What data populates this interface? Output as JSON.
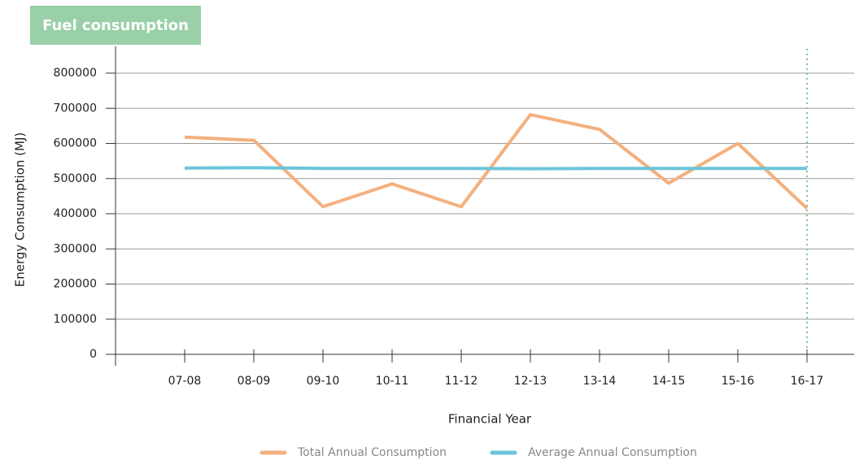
{
  "chart_data": {
    "type": "line",
    "title": "Fuel consumption",
    "x_label": "Financial Year",
    "y_label": "Energy Consumption (MJ)",
    "categories": [
      "07-08",
      "08-09",
      "09-10",
      "10-11",
      "11-12",
      "12-13",
      "13-14",
      "14-15",
      "15-16",
      "16-17"
    ],
    "series": [
      {
        "name": "Total Annual Consumption",
        "color": "#f4b07e",
        "values": [
          618000,
          609000,
          420000,
          485000,
          420000,
          682000,
          640000,
          487000,
          600000,
          415000
        ]
      },
      {
        "name": "Average Annual Consumption",
        "color": "#6cc5d9",
        "values": [
          530000,
          531000,
          529000,
          529000,
          529000,
          528000,
          529000,
          529000,
          529000,
          529000
        ]
      }
    ],
    "ylim": [
      0,
      800000
    ],
    "yticks": [
      0,
      100000,
      200000,
      300000,
      400000,
      500000,
      600000,
      700000,
      800000
    ],
    "grid": true,
    "legend": "bottom"
  }
}
